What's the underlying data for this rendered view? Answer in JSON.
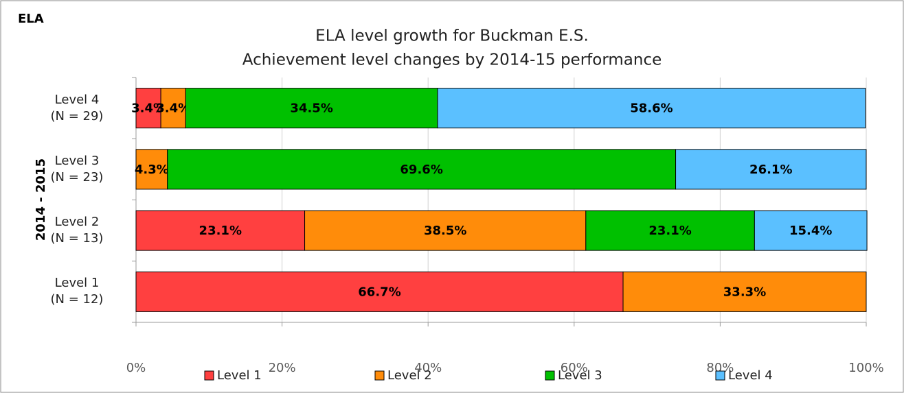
{
  "chart_data": {
    "type": "stacked_bar_horizontal",
    "corner_label": "ELA",
    "title": "ELA level growth for Buckman E.S.",
    "subtitle": "Achievement level changes by 2014-15 performance",
    "ylabel": "2014 - 2015",
    "categories": [
      "Level 4\n(N = 29)",
      "Level 3\n(N = 23)",
      "Level 2\n(N = 13)",
      "Level 1\n(N = 12)"
    ],
    "series": [
      {
        "name": "Level 1",
        "color": "#ff4040",
        "values": [
          3.4,
          null,
          23.1,
          66.7
        ],
        "value_labels": [
          "3.4%",
          null,
          "23.1%",
          "66.7%"
        ]
      },
      {
        "name": "Level 2",
        "color": "#ff8c0a",
        "values": [
          3.4,
          4.3,
          38.5,
          33.3
        ],
        "value_labels": [
          "3.4%",
          "4.3%",
          "38.5%",
          "33.3%"
        ]
      },
      {
        "name": "Level 3",
        "color": "#00c000",
        "values": [
          34.5,
          69.6,
          23.1,
          null
        ],
        "value_labels": [
          "34.5%",
          "69.6%",
          "23.1%",
          null
        ]
      },
      {
        "name": "Level 4",
        "color": "#5bc0ff",
        "values": [
          58.6,
          26.1,
          15.4,
          null
        ],
        "value_labels": [
          "58.6%",
          "26.1%",
          "15.4%",
          null
        ]
      }
    ],
    "xlim": [
      0,
      100
    ],
    "xticks": [
      {
        "value": 0,
        "label": "0%"
      },
      {
        "value": 20,
        "label": "20%"
      },
      {
        "value": 40,
        "label": "40%"
      },
      {
        "value": 60,
        "label": "60%"
      },
      {
        "value": 80,
        "label": "80%"
      },
      {
        "value": 100,
        "label": "100%"
      }
    ],
    "grid": true,
    "legend": "bottom"
  }
}
